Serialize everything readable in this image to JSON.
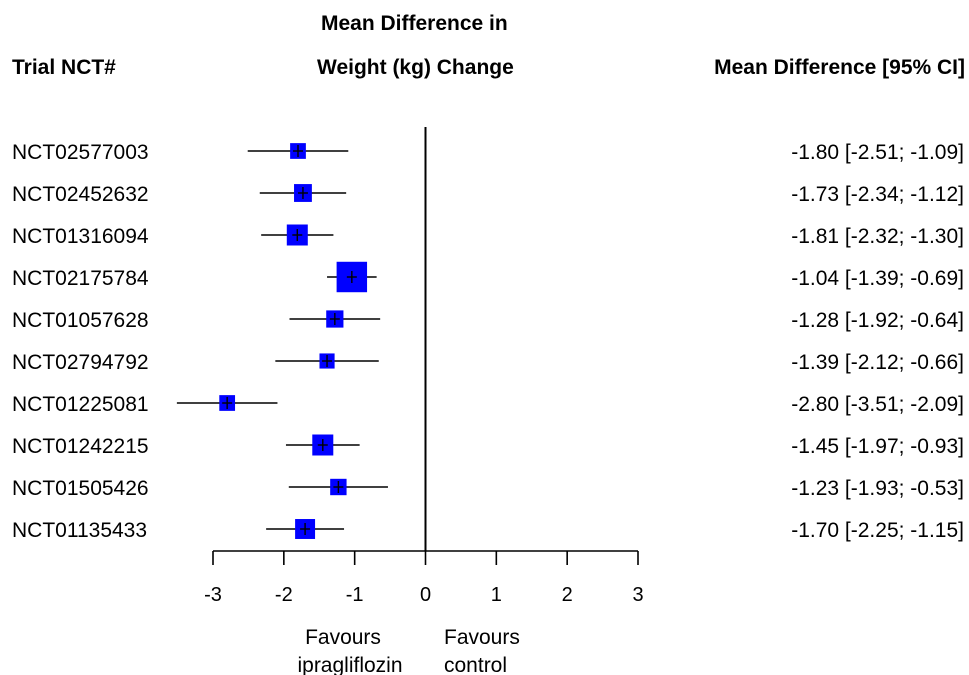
{
  "headers": {
    "trial": "Trial NCT#",
    "effect_line1": "Mean Difference in",
    "effect_line2": "Weight (kg) Change",
    "ci": "Mean Difference [95% CI]"
  },
  "chart_data": {
    "type": "forest",
    "xlim": [
      -3,
      3
    ],
    "ticks": [
      "-3",
      "-2",
      "-1",
      "0",
      "1",
      "2",
      "3"
    ],
    "tick_values": [
      -3,
      -2,
      -1,
      0,
      1,
      2,
      3
    ],
    "reference_line": 0,
    "marker_color": "#0000ff",
    "rows": [
      {
        "trial": "NCT02577003",
        "md": -1.8,
        "lo": -2.51,
        "hi": -1.09,
        "ci_text": "-1.80 [-2.51; -1.09]",
        "weight": 0.75
      },
      {
        "trial": "NCT02452632",
        "md": -1.73,
        "lo": -2.34,
        "hi": -1.12,
        "ci_text": "-1.73 [-2.34; -1.12]",
        "weight": 0.85
      },
      {
        "trial": "NCT01316094",
        "md": -1.81,
        "lo": -2.32,
        "hi": -1.3,
        "ci_text": "-1.81 [-2.32; -1.30]",
        "weight": 1.0
      },
      {
        "trial": "NCT02175784",
        "md": -1.04,
        "lo": -1.39,
        "hi": -0.69,
        "ci_text": "-1.04 [-1.39; -0.69]",
        "weight": 1.45
      },
      {
        "trial": "NCT01057628",
        "md": -1.28,
        "lo": -1.92,
        "hi": -0.64,
        "ci_text": "-1.28 [-1.92; -0.64]",
        "weight": 0.82
      },
      {
        "trial": "NCT02794792",
        "md": -1.39,
        "lo": -2.12,
        "hi": -0.66,
        "ci_text": "-1.39 [-2.12; -0.66]",
        "weight": 0.72
      },
      {
        "trial": "NCT01225081",
        "md": -2.8,
        "lo": -3.51,
        "hi": -2.09,
        "ci_text": "-2.80 [-3.51; -2.09]",
        "weight": 0.75
      },
      {
        "trial": "NCT01242215",
        "md": -1.45,
        "lo": -1.97,
        "hi": -0.93,
        "ci_text": "-1.45 [-1.97; -0.93]",
        "weight": 1.0
      },
      {
        "trial": "NCT01505426",
        "md": -1.23,
        "lo": -1.93,
        "hi": -0.53,
        "ci_text": "-1.23 [-1.93; -0.53]",
        "weight": 0.78
      },
      {
        "trial": "NCT01135433",
        "md": -1.7,
        "lo": -2.25,
        "hi": -1.15,
        "ci_text": "-1.70 [-2.25; -1.15]",
        "weight": 0.95
      }
    ],
    "favours_left": [
      "Favours",
      "ipragliflozin"
    ],
    "favours_right": [
      "Favours",
      "control"
    ]
  }
}
